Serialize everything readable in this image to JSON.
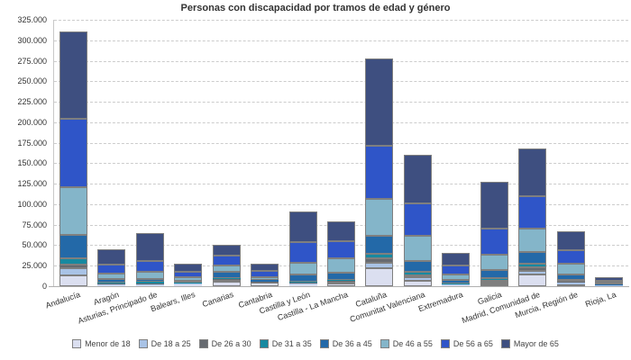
{
  "chart_data": {
    "type": "bar",
    "stacked": true,
    "title": "Personas con discapacidad por tramos de edad y género",
    "xlabel": "",
    "ylabel": "",
    "categories": [
      "Andalucía",
      "Aragón",
      "Asturias, Principado de",
      "Balears, Illes",
      "Canarias",
      "Cantabria",
      "Castilla y León",
      "Castilla - La Mancha",
      "Cataluña",
      "Comunitat Valenciana",
      "Extremadura",
      "Galicia",
      "Madrid, Comunidad de",
      "Murcia, Región de",
      "Rioja, La"
    ],
    "series": [
      {
        "name": "Menor de 18",
        "color": "#dbdff0",
        "values": [
          13500,
          1500,
          1600,
          2000,
          5200,
          3900,
          1800,
          3700,
          22300,
          6200,
          1000,
          2500,
          14300,
          2500,
          400
        ]
      },
      {
        "name": "De 18 a 25",
        "color": "#a9c3e6",
        "values": [
          8800,
          1000,
          1000,
          900,
          2900,
          900,
          1300,
          2200,
          6500,
          4400,
          800,
          2200,
          4700,
          1800,
          300
        ]
      },
      {
        "name": "De 26 a 30",
        "color": "#666a70",
        "values": [
          3700,
          900,
          1200,
          700,
          1100,
          500,
          1100,
          1100,
          4900,
          2900,
          800,
          2200,
          3700,
          1500,
          200
        ]
      },
      {
        "name": "De 31 a 35",
        "color": "#1789a0",
        "values": [
          7700,
          1400,
          1500,
          800,
          1100,
          700,
          1500,
          1100,
          5400,
          4400,
          1000,
          3000,
          4400,
          2200,
          300
        ]
      },
      {
        "name": "De 36 a 45",
        "color": "#2369a8",
        "values": [
          28800,
          3500,
          3700,
          2500,
          7000,
          2000,
          8800,
          8800,
          22600,
          12800,
          3600,
          9800,
          14600,
          6300,
          1000
        ]
      },
      {
        "name": "De 46 a 55",
        "color": "#84b5c9",
        "values": [
          57800,
          7400,
          8400,
          4400,
          8000,
          3000,
          13800,
          17500,
          45000,
          31000,
          6600,
          18400,
          28200,
          13400,
          2200
        ]
      },
      {
        "name": "De 56 a 65",
        "color": "#2f55c8",
        "values": [
          83400,
          10900,
          13500,
          5900,
          12100,
          7500,
          25700,
          20900,
          64700,
          39500,
          11000,
          31800,
          39400,
          15800,
          2500
        ]
      },
      {
        "name": "Mayor de 65",
        "color": "#3e4f80",
        "values": [
          106700,
          18300,
          34000,
          10500,
          13500,
          8600,
          37300,
          24100,
          106100,
          58600,
          16400,
          57000,
          58500,
          23100,
          4400
        ]
      }
    ],
    "ylim": [
      0,
      325000
    ],
    "ytick_step": 25000,
    "yticks": [
      "0",
      "25.000",
      "50.000",
      "75.000",
      "100.000",
      "125.000",
      "150.000",
      "175.000",
      "200.000",
      "225.000",
      "250.000",
      "275.000",
      "300.000",
      "325.000"
    ],
    "grid": "horizontal-dashed",
    "legend_position": "bottom"
  },
  "colors": {
    "background": "#ffffff",
    "grid": "#cccccc",
    "axis": "#b0b0b0",
    "bar_border": "#7f7f7f",
    "text": "#333333"
  }
}
